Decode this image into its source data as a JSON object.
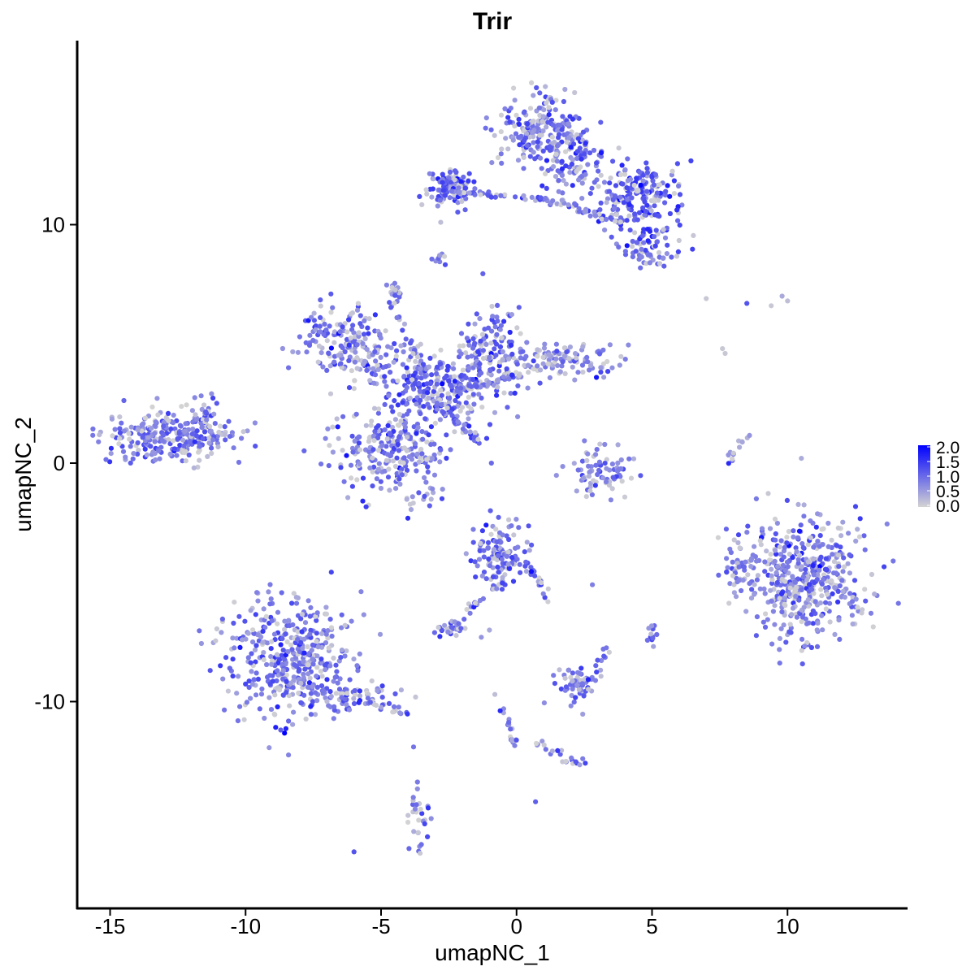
{
  "chart_data": {
    "type": "scatter",
    "title": "Trir",
    "xlabel": "umapNC_1",
    "ylabel": "umapNC_2",
    "xlim": [
      -16.5,
      14.5
    ],
    "ylim": [
      -18.5,
      17.8
    ],
    "xticks": [
      -15,
      -10,
      -5,
      0,
      5,
      10
    ],
    "xtick_labels": [
      "-15",
      "-10",
      "-5",
      "0",
      "5",
      "10"
    ],
    "yticks": [
      -10,
      0,
      10
    ],
    "ytick_labels": [
      "-10",
      "0",
      "10"
    ],
    "grid": false,
    "legend": {
      "placement": "right",
      "type": "colorbar",
      "labels": [
        "2.0",
        "1.5",
        "1.0",
        "0.5",
        "0.0"
      ],
      "values": [
        2.0,
        1.5,
        1.0,
        0.5,
        0.0
      ],
      "range": [
        0,
        2.0
      ]
    },
    "colors": {
      "low": "#d3d3d3",
      "high": "#0000ff"
    },
    "clusters": [
      {
        "cx": -12.8,
        "cy": 1.1,
        "sx": 1.2,
        "sy": 0.6,
        "n": 260,
        "mean": 0.85
      },
      {
        "cx": -11.6,
        "cy": 1.8,
        "sx": 0.5,
        "sy": 0.5,
        "n": 40,
        "mean": 0.9
      },
      {
        "cx": -6.5,
        "cy": 5.2,
        "sx": 0.8,
        "sy": 0.6,
        "n": 140,
        "mean": 0.85
      },
      {
        "cx": -5.5,
        "cy": 4.2,
        "sx": 0.8,
        "sy": 0.5,
        "n": 80,
        "mean": 0.85
      },
      {
        "cx": -4.5,
        "cy": 0.5,
        "sx": 1.1,
        "sy": 1.1,
        "n": 280,
        "mean": 0.9
      },
      {
        "cx": -2.8,
        "cy": 3.2,
        "sx": 0.8,
        "sy": 0.7,
        "n": 200,
        "mean": 1.0
      },
      {
        "cx": -1.0,
        "cy": 4.6,
        "sx": 0.6,
        "sy": 1.1,
        "n": 150,
        "mean": 1.0
      },
      {
        "cx": 1.5,
        "cy": 4.3,
        "sx": 1.0,
        "sy": 0.4,
        "n": 120,
        "mean": 0.7
      },
      {
        "cx": -4.5,
        "cy": 7.3,
        "sx": 0.15,
        "sy": 0.2,
        "n": 18,
        "mean": 0.9
      },
      {
        "cx": -2.5,
        "cy": 11.5,
        "sx": 0.4,
        "sy": 0.4,
        "n": 110,
        "mean": 1.05
      },
      {
        "cx": 1.0,
        "cy": 14.0,
        "sx": 0.8,
        "sy": 0.8,
        "n": 220,
        "mean": 0.85
      },
      {
        "cx": 2.0,
        "cy": 12.5,
        "sx": 0.6,
        "sy": 0.7,
        "n": 80,
        "mean": 0.85
      },
      {
        "cx": 4.5,
        "cy": 11.3,
        "sx": 0.8,
        "sy": 0.7,
        "n": 200,
        "mean": 1.1
      },
      {
        "cx": 4.8,
        "cy": 9.0,
        "sx": 0.6,
        "sy": 0.4,
        "n": 70,
        "mean": 0.95
      },
      {
        "cx": -2.8,
        "cy": 8.6,
        "sx": 0.15,
        "sy": 0.15,
        "n": 10,
        "mean": 0.9
      },
      {
        "cx": -8.4,
        "cy": -8.2,
        "sx": 1.2,
        "sy": 1.3,
        "n": 420,
        "mean": 0.9
      },
      {
        "cx": -5.5,
        "cy": -9.8,
        "sx": 0.8,
        "sy": 0.3,
        "n": 50,
        "mean": 0.8
      },
      {
        "cx": -0.6,
        "cy": -3.8,
        "sx": 0.5,
        "sy": 0.6,
        "n": 130,
        "mean": 1.0
      },
      {
        "cx": -2.4,
        "cy": -6.9,
        "sx": 0.3,
        "sy": 0.2,
        "n": 30,
        "mean": 0.9
      },
      {
        "cx": 2.4,
        "cy": -9.3,
        "sx": 0.4,
        "sy": 0.4,
        "n": 60,
        "mean": 0.8
      },
      {
        "cx": 3.1,
        "cy": -0.5,
        "sx": 0.6,
        "sy": 0.5,
        "n": 80,
        "mean": 0.9
      },
      {
        "cx": 10.6,
        "cy": -4.8,
        "sx": 1.2,
        "sy": 1.3,
        "n": 480,
        "mean": 0.85
      },
      {
        "cx": 8.3,
        "cy": -4.8,
        "sx": 0.3,
        "sy": 0.6,
        "n": 30,
        "mean": 0.8
      },
      {
        "cx": 5.0,
        "cy": -7.2,
        "sx": 0.1,
        "sy": 0.2,
        "n": 12,
        "mean": 1.1
      },
      {
        "cx": -3.6,
        "cy": -14.8,
        "sx": 0.2,
        "sy": 0.6,
        "n": 30,
        "mean": 0.9
      },
      {
        "cx": 2.2,
        "cy": -12.5,
        "sx": 0.3,
        "sy": 0.1,
        "n": 10,
        "mean": 1.0
      }
    ],
    "strands": [
      {
        "from": [
          -2.5,
          11.4
        ],
        "to": [
          1.5,
          11.0
        ],
        "n": 45,
        "mean": 0.8
      },
      {
        "from": [
          1.5,
          11.0
        ],
        "to": [
          4.0,
          10.0
        ],
        "n": 35,
        "mean": 0.9
      },
      {
        "from": [
          -4.8,
          7.0
        ],
        "to": [
          -3.2,
          3.5
        ],
        "n": 25,
        "mean": 1.0
      },
      {
        "from": [
          -3.0,
          2.5
        ],
        "to": [
          -1.2,
          0.8
        ],
        "n": 35,
        "mean": 0.9
      },
      {
        "from": [
          -2.2,
          3.0
        ],
        "to": [
          0.5,
          3.8
        ],
        "n": 40,
        "mean": 0.9
      },
      {
        "from": [
          -0.4,
          -4.8
        ],
        "to": [
          -1.8,
          -6.2
        ],
        "n": 20,
        "mean": 0.9
      },
      {
        "from": [
          0.4,
          -4.0
        ],
        "to": [
          1.2,
          -5.8
        ],
        "n": 18,
        "mean": 0.9
      },
      {
        "from": [
          -9.0,
          -9.0
        ],
        "to": [
          -4.0,
          -10.5
        ],
        "n": 40,
        "mean": 0.85
      },
      {
        "from": [
          -0.5,
          -10.3
        ],
        "to": [
          0.0,
          -12.0
        ],
        "n": 18,
        "mean": 0.9
      },
      {
        "from": [
          0.3,
          -11.6
        ],
        "to": [
          2.3,
          -12.4
        ],
        "n": 12,
        "mean": 0.8
      },
      {
        "from": [
          8.5,
          1.2
        ],
        "to": [
          7.8,
          0.0
        ],
        "n": 14,
        "mean": 0.8
      },
      {
        "from": [
          2.3,
          -9.5
        ],
        "to": [
          3.6,
          -7.5
        ],
        "n": 12,
        "mean": 0.8
      }
    ],
    "outliers": [
      {
        "x": 7.0,
        "y": 6.9,
        "v": 0.1
      },
      {
        "x": 8.5,
        "y": 6.7,
        "v": 1.2
      },
      {
        "x": 9.4,
        "y": 6.6,
        "v": 0.1
      },
      {
        "x": 9.8,
        "y": 7.0,
        "v": 0.4
      },
      {
        "x": 10.0,
        "y": 6.8,
        "v": 0.2
      },
      {
        "x": 7.6,
        "y": 4.8,
        "v": 0.1
      },
      {
        "x": 7.7,
        "y": 4.6,
        "v": 0.1
      },
      {
        "x": -6.0,
        "y": -16.3,
        "v": 1.2
      },
      {
        "x": 0.7,
        "y": -14.2,
        "v": 1.1
      },
      {
        "x": 2.8,
        "y": -5.1,
        "v": 0.8
      },
      {
        "x": -3.8,
        "y": -11.9,
        "v": 0.9
      },
      {
        "x": -0.8,
        "y": -9.7,
        "v": 0.2
      },
      {
        "x": -1.0,
        "y": -7.0,
        "v": 0.4
      },
      {
        "x": -1.3,
        "y": -7.3,
        "v": 0.6
      },
      {
        "x": -2.8,
        "y": 10.1,
        "v": 0.2
      },
      {
        "x": 3.2,
        "y": -7.8,
        "v": 0.9
      }
    ]
  }
}
